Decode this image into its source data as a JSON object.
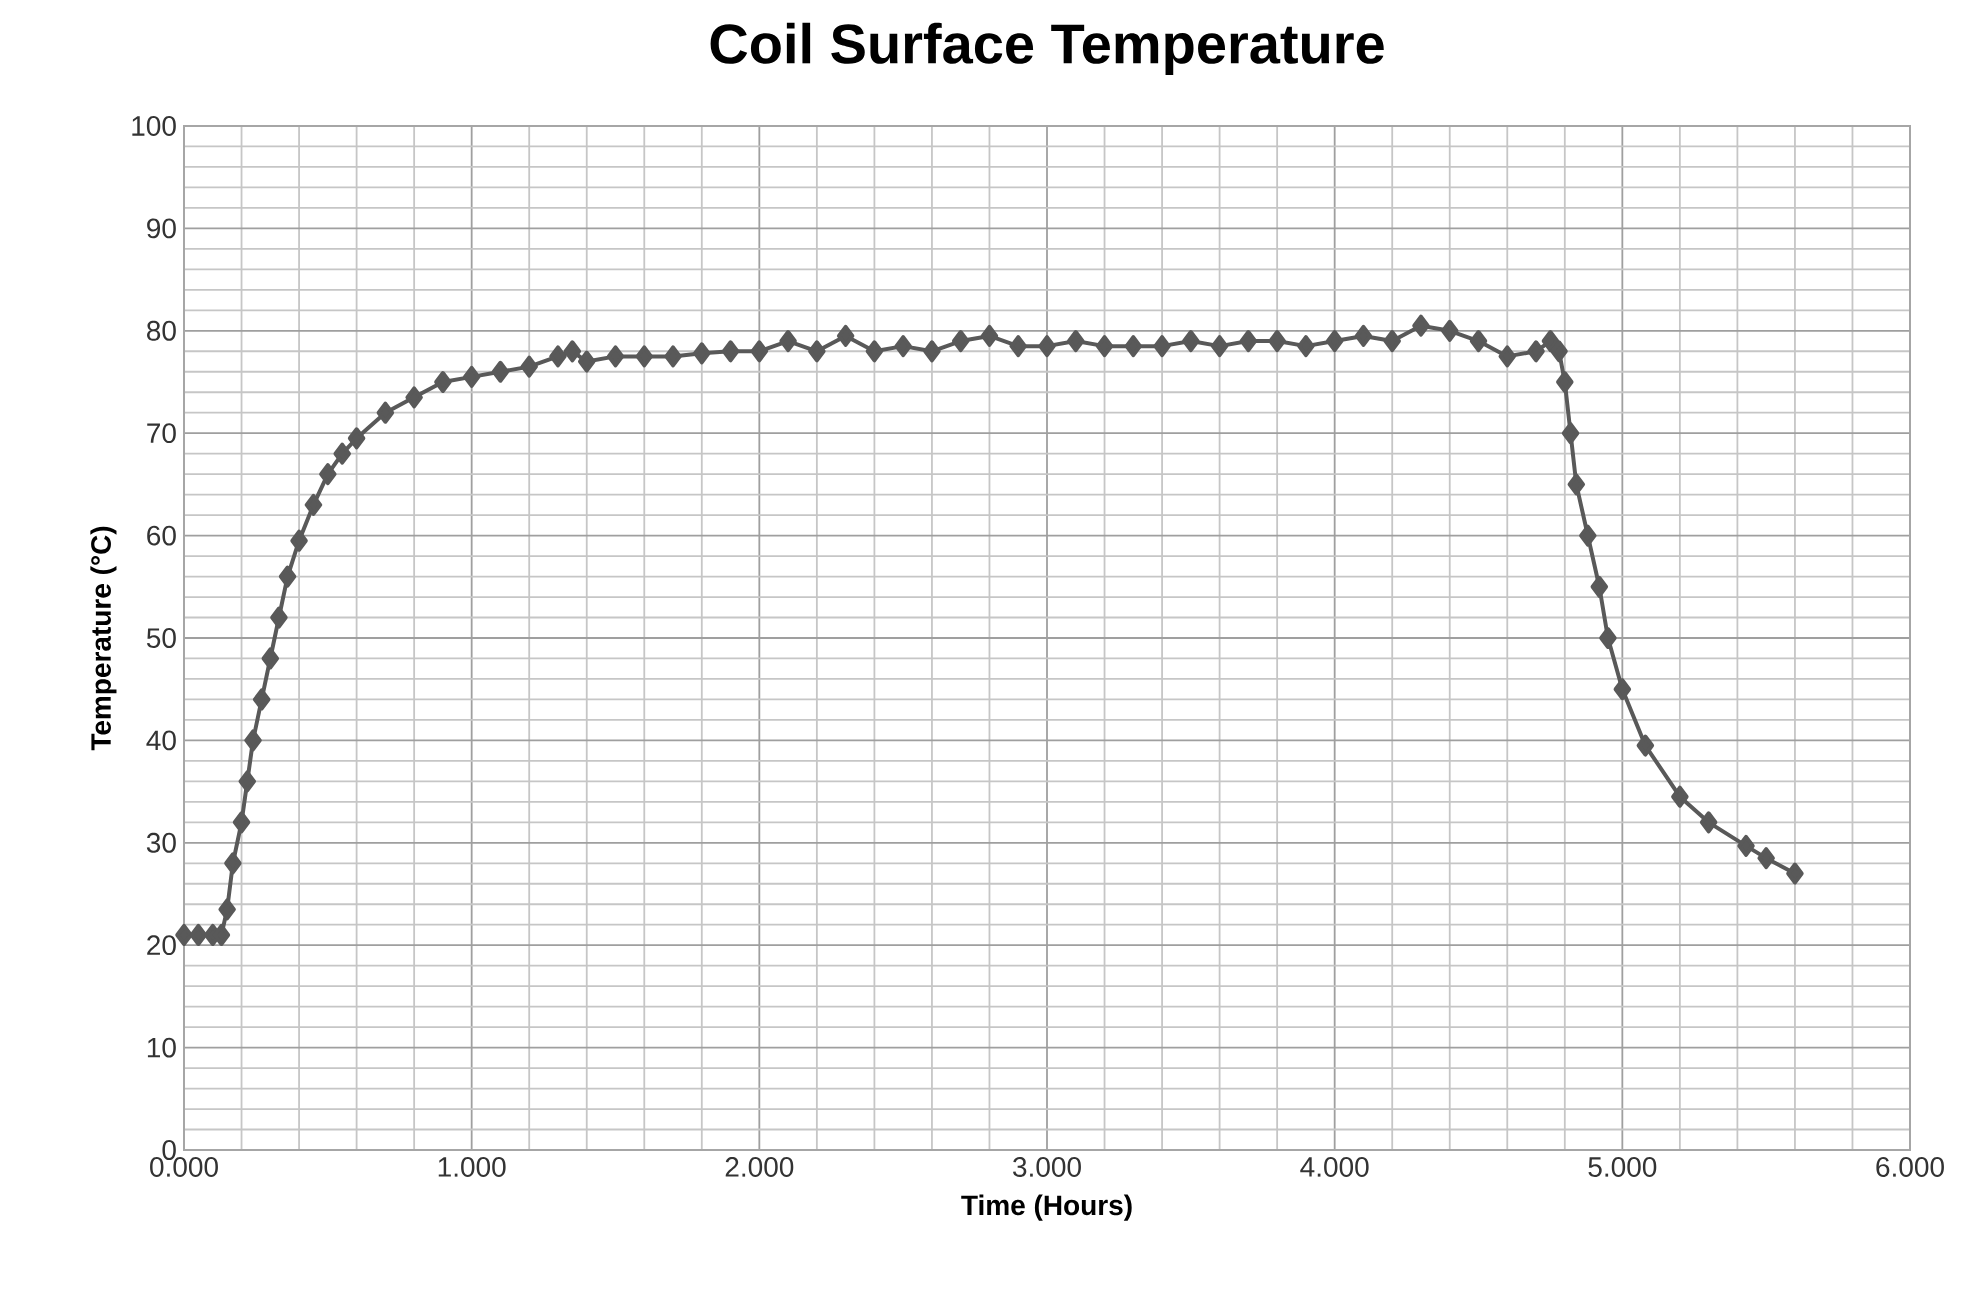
{
  "chart_data": {
    "type": "line",
    "title": "Coil Surface Temperature",
    "xlabel": "Time (Hours)",
    "ylabel": "Temperature (°C)",
    "xlim": [
      0,
      6
    ],
    "ylim": [
      0,
      100
    ],
    "xticks": [
      {
        "value": 0,
        "label": "0.000"
      },
      {
        "value": 1,
        "label": "1.000"
      },
      {
        "value": 2,
        "label": "2.000"
      },
      {
        "value": 3,
        "label": "3.000"
      },
      {
        "value": 4,
        "label": "4.000"
      },
      {
        "value": 5,
        "label": "5.000"
      },
      {
        "value": 6,
        "label": "6.000"
      }
    ],
    "yticks": [
      0,
      10,
      20,
      30,
      40,
      50,
      60,
      70,
      80,
      90,
      100
    ],
    "grid": true,
    "marker": "diamond",
    "line_style": "solid",
    "series": [
      {
        "color": "#595959",
        "x": [
          0,
          0.05,
          0.1,
          0.13,
          0.15,
          0.17,
          0.2,
          0.22,
          0.24,
          0.27,
          0.3,
          0.33,
          0.36,
          0.4,
          0.45,
          0.5,
          0.55,
          0.6,
          0.7,
          0.8,
          0.9,
          1.0,
          1.1,
          1.2,
          1.3,
          1.35,
          1.4,
          1.5,
          1.6,
          1.7,
          1.8,
          1.9,
          2.0,
          2.1,
          2.2,
          2.3,
          2.4,
          2.5,
          2.6,
          2.7,
          2.8,
          2.9,
          3.0,
          3.1,
          3.2,
          3.3,
          3.4,
          3.5,
          3.6,
          3.7,
          3.8,
          3.9,
          4.0,
          4.1,
          4.2,
          4.3,
          4.4,
          4.5,
          4.6,
          4.7,
          4.75,
          4.78,
          4.8,
          4.82,
          4.84,
          4.88,
          4.92,
          4.95,
          5.0,
          5.08,
          5.2,
          5.3,
          5.43,
          5.5,
          5.6
        ],
        "values": [
          21,
          21,
          21,
          21,
          23.5,
          28,
          32,
          36,
          40,
          44,
          48,
          52,
          56,
          59.5,
          63,
          66,
          68,
          69.5,
          72,
          73.5,
          75,
          75.5,
          76,
          76.5,
          77.5,
          78,
          77,
          77.5,
          77.5,
          77.5,
          77.8,
          78,
          78,
          79,
          78,
          79.5,
          78,
          78.5,
          78,
          79,
          79.5,
          78.5,
          78.5,
          79,
          78.5,
          78.5,
          78.5,
          79,
          78.5,
          79,
          79,
          78.5,
          79,
          79.5,
          79,
          80.5,
          80,
          79,
          77.5,
          78,
          79,
          78,
          75,
          70,
          65,
          60,
          55,
          50,
          45,
          39.5,
          34.5,
          32,
          29.7,
          28.5,
          27
        ]
      }
    ]
  }
}
